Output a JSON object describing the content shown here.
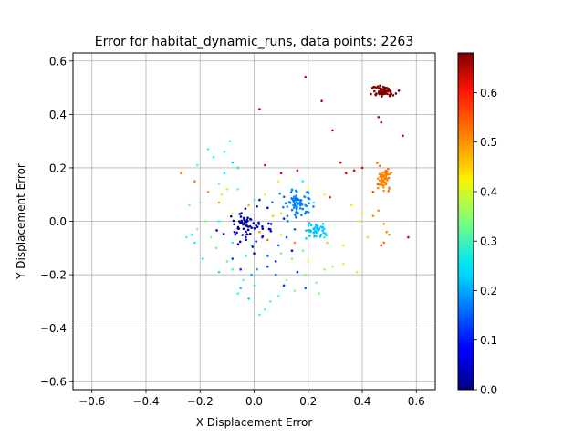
{
  "chart_data": {
    "type": "scatter",
    "title": "Error for habitat_dynamic_runs, data points: 2263",
    "xlabel": "X Displacement Error",
    "ylabel": "Y Displacement Error",
    "xlim": [
      -0.67,
      0.67
    ],
    "ylim": [
      -0.63,
      0.63
    ],
    "xticks": [
      -0.6,
      -0.4,
      -0.2,
      0.0,
      0.2,
      0.4,
      0.6
    ],
    "yticks": [
      -0.6,
      -0.4,
      -0.2,
      0.0,
      0.2,
      0.4,
      0.6
    ],
    "xtick_labels": [
      "−0.6",
      "−0.4",
      "−0.2",
      "0.0",
      "0.2",
      "0.4",
      "0.6"
    ],
    "ytick_labels": [
      "−0.6",
      "−0.4",
      "−0.2",
      "0.0",
      "0.2",
      "0.4",
      "0.6"
    ],
    "grid": true,
    "colormap": "jet",
    "colorbar": {
      "min": 0.0,
      "max": 0.68,
      "ticks": [
        0.0,
        0.1,
        0.2,
        0.3,
        0.4,
        0.5,
        0.6
      ],
      "tick_labels": [
        "0.0",
        "0.1",
        "0.2",
        "0.3",
        "0.4",
        "0.5",
        "0.6"
      ]
    },
    "clusters": [
      {
        "label": "dark-blue core",
        "center": [
          -0.02,
          -0.02
        ],
        "spread": [
          0.035,
          0.03
        ],
        "count": 60,
        "color_value": 0.03
      },
      {
        "label": "blue cluster",
        "center": [
          0.16,
          0.07
        ],
        "spread": [
          0.03,
          0.025
        ],
        "count": 70,
        "color_value": 0.17
      },
      {
        "label": "cyan cluster",
        "center": [
          0.23,
          -0.03
        ],
        "spread": [
          0.02,
          0.012
        ],
        "count": 45,
        "color_value": 0.22
      },
      {
        "label": "orange cluster",
        "center": [
          0.48,
          0.16
        ],
        "spread": [
          0.013,
          0.022
        ],
        "count": 55,
        "color_value": 0.51
      },
      {
        "label": "dark-red cluster",
        "center": [
          0.48,
          0.485
        ],
        "spread": [
          0.02,
          0.01
        ],
        "count": 70,
        "color_value": 0.68
      }
    ],
    "points": [
      [
        0.02,
        0.42,
        0.64
      ],
      [
        0.19,
        0.54,
        0.64
      ],
      [
        0.25,
        0.45,
        0.64
      ],
      [
        0.29,
        0.34,
        0.64
      ],
      [
        0.55,
        0.32,
        0.64
      ],
      [
        0.32,
        0.22,
        0.62
      ],
      [
        0.34,
        0.18,
        0.62
      ],
      [
        0.37,
        0.19,
        0.62
      ],
      [
        0.4,
        0.2,
        0.62
      ],
      [
        0.16,
        0.19,
        0.62
      ],
      [
        0.1,
        0.18,
        0.62
      ],
      [
        0.04,
        0.21,
        0.62
      ],
      [
        0.28,
        0.09,
        0.62
      ],
      [
        0.57,
        -0.06,
        0.62
      ],
      [
        0.47,
        -0.09,
        0.6
      ],
      [
        0.46,
        0.39,
        0.66
      ],
      [
        0.47,
        0.37,
        0.66
      ],
      [
        0.44,
        0.11,
        0.55
      ],
      [
        0.46,
        0.04,
        0.5
      ],
      [
        0.49,
        -0.04,
        0.5
      ],
      [
        0.48,
        -0.01,
        0.5
      ],
      [
        0.5,
        -0.05,
        0.5
      ],
      [
        0.48,
        -0.08,
        0.52
      ],
      [
        0.44,
        0.02,
        0.5
      ],
      [
        -0.27,
        0.18,
        0.52
      ],
      [
        -0.22,
        0.15,
        0.52
      ],
      [
        -0.17,
        0.11,
        0.5
      ],
      [
        -0.13,
        0.07,
        0.48
      ],
      [
        -0.02,
        0.06,
        0.48
      ],
      [
        0.07,
        0.02,
        0.46
      ],
      [
        0.1,
        0.03,
        0.45
      ],
      [
        0.02,
        -0.04,
        0.5
      ],
      [
        0.15,
        -0.08,
        0.5
      ],
      [
        0.05,
        -0.07,
        0.52
      ],
      [
        0.27,
        -0.08,
        0.46
      ],
      [
        0.33,
        -0.09,
        0.44
      ],
      [
        0.38,
        -0.19,
        0.44
      ],
      [
        0.42,
        -0.06,
        0.45
      ],
      [
        0.4,
        0.03,
        0.44
      ],
      [
        0.36,
        0.06,
        0.44
      ],
      [
        0.39,
        0.0,
        0.44
      ],
      [
        0.04,
        0.1,
        0.4
      ],
      [
        0.09,
        0.15,
        0.4
      ],
      [
        0.2,
        0.12,
        0.4
      ],
      [
        0.26,
        0.1,
        0.4
      ],
      [
        0.19,
        0.09,
        0.38
      ],
      [
        0.12,
        0.0,
        0.38
      ],
      [
        -0.1,
        0.12,
        0.38
      ],
      [
        -0.12,
        0.1,
        0.4
      ],
      [
        -0.08,
        0.03,
        0.4
      ],
      [
        -0.04,
        0.0,
        0.38
      ],
      [
        0.1,
        -0.05,
        0.4
      ],
      [
        0.29,
        -0.17,
        0.38
      ],
      [
        0.33,
        -0.16,
        0.38
      ],
      [
        0.26,
        -0.18,
        0.36
      ],
      [
        0.2,
        -0.15,
        0.36
      ],
      [
        -0.24,
        0.06,
        0.34
      ],
      [
        -0.21,
        -0.03,
        0.34
      ],
      [
        -0.18,
        0.0,
        0.34
      ],
      [
        -0.16,
        -0.06,
        0.34
      ],
      [
        -0.14,
        -0.1,
        0.32
      ],
      [
        -0.1,
        -0.15,
        0.32
      ],
      [
        -0.08,
        -0.18,
        0.3
      ],
      [
        -0.04,
        -0.22,
        0.3
      ],
      [
        -0.06,
        -0.27,
        0.28
      ],
      [
        0.0,
        -0.24,
        0.3
      ],
      [
        0.02,
        -0.35,
        0.3
      ],
      [
        0.04,
        -0.33,
        0.3
      ],
      [
        0.06,
        -0.3,
        0.32
      ],
      [
        0.09,
        -0.28,
        0.32
      ],
      [
        0.12,
        -0.22,
        0.34
      ],
      [
        0.15,
        -0.26,
        0.34
      ],
      [
        0.19,
        -0.2,
        0.34
      ],
      [
        0.23,
        -0.23,
        0.34
      ],
      [
        0.24,
        -0.27,
        0.34
      ],
      [
        0.1,
        -0.12,
        0.32
      ],
      [
        0.14,
        -0.14,
        0.32
      ],
      [
        0.18,
        -0.11,
        0.32
      ],
      [
        -0.03,
        -0.13,
        0.3
      ],
      [
        -0.01,
        -0.09,
        0.3
      ],
      [
        0.0,
        0.08,
        0.32
      ],
      [
        -0.06,
        0.12,
        0.32
      ],
      [
        -0.11,
        0.26,
        0.28
      ],
      [
        -0.15,
        0.24,
        0.28
      ],
      [
        -0.17,
        0.27,
        0.28
      ],
      [
        -0.09,
        0.3,
        0.28
      ],
      [
        -0.13,
        0.14,
        0.3
      ],
      [
        -0.21,
        0.21,
        0.3
      ],
      [
        -0.08,
        0.22,
        0.22
      ],
      [
        -0.06,
        0.2,
        0.24
      ],
      [
        -0.11,
        0.18,
        0.24
      ],
      [
        0.14,
        0.12,
        0.26
      ],
      [
        0.18,
        0.15,
        0.26
      ],
      [
        0.22,
        0.07,
        0.26
      ],
      [
        0.26,
        -0.06,
        0.26
      ],
      [
        -0.22,
        -0.08,
        0.26
      ],
      [
        -0.23,
        -0.05,
        0.26
      ],
      [
        -0.19,
        -0.14,
        0.24
      ],
      [
        -0.13,
        -0.19,
        0.24
      ],
      [
        -0.05,
        -0.25,
        0.22
      ],
      [
        -0.01,
        -0.2,
        0.2
      ],
      [
        0.01,
        -0.18,
        0.18
      ],
      [
        0.05,
        -0.13,
        0.18
      ],
      [
        -0.02,
        -0.29,
        0.22
      ],
      [
        0.08,
        -0.2,
        0.16
      ],
      [
        0.05,
        -0.17,
        0.14
      ],
      [
        0.09,
        -0.09,
        0.14
      ],
      [
        0.12,
        -0.06,
        0.14
      ],
      [
        0.15,
        -0.03,
        0.14
      ],
      [
        0.03,
        -0.06,
        0.12
      ],
      [
        -0.05,
        -0.18,
        0.12
      ],
      [
        -0.08,
        -0.14,
        0.12
      ],
      [
        0.06,
        -0.03,
        0.1
      ],
      [
        0.11,
        0.01,
        0.1
      ],
      [
        0.02,
        0.08,
        0.1
      ],
      [
        0.05,
        0.05,
        0.08
      ],
      [
        -0.07,
        -0.05,
        0.08
      ],
      [
        0.08,
        -0.15,
        0.08
      ],
      [
        0.14,
        -0.11,
        0.08
      ],
      [
        0.0,
        -0.12,
        0.06
      ],
      [
        0.03,
        -0.02,
        0.06
      ],
      [
        0.16,
        -0.19,
        0.1
      ],
      [
        0.19,
        -0.25,
        0.14
      ],
      [
        0.11,
        -0.24,
        0.12
      ],
      [
        -0.2,
        0.07,
        0.34
      ],
      [
        -0.25,
        -0.06,
        0.3
      ],
      [
        -0.13,
        0.0,
        0.28
      ],
      [
        -0.08,
        -0.08,
        0.28
      ]
    ]
  }
}
